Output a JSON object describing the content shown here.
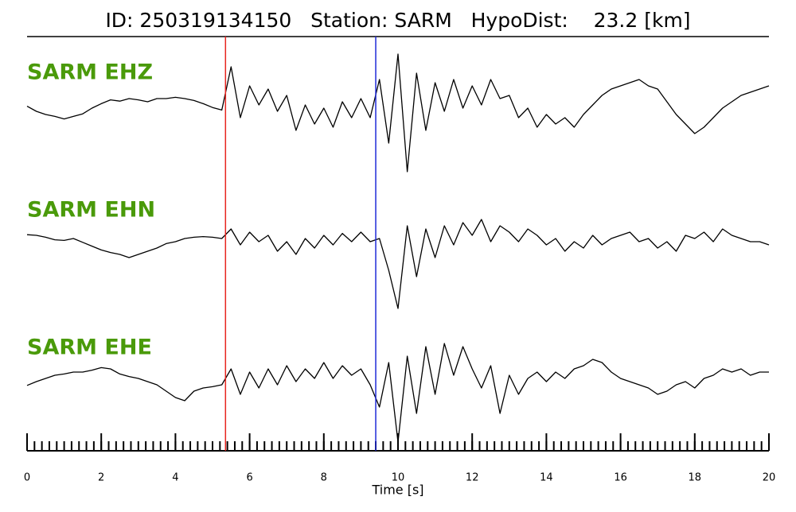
{
  "chart_data": {
    "type": "line",
    "title": "ID: 250319134150   Station: SARM   HypoDist:    23.2 [km]",
    "xlabel": "Time [s]",
    "xlim": [
      0,
      20
    ],
    "xticks": [
      0,
      2,
      4,
      6,
      8,
      10,
      12,
      14,
      16,
      18,
      20
    ],
    "xminor_step": 0.2,
    "label_color": "#4a9a0a",
    "markers": [
      {
        "x": 5.35,
        "color": "#e8251f"
      },
      {
        "x": 9.4,
        "color": "#1f2ad8"
      }
    ],
    "x": [
      0,
      0.25,
      0.5,
      0.75,
      1,
      1.25,
      1.5,
      1.75,
      2,
      2.25,
      2.5,
      2.75,
      3,
      3.25,
      3.5,
      3.75,
      4,
      4.25,
      4.5,
      4.75,
      5,
      5.25,
      5.5,
      5.75,
      6,
      6.25,
      6.5,
      6.75,
      7,
      7.25,
      7.5,
      7.75,
      8,
      8.25,
      8.5,
      8.75,
      9,
      9.25,
      9.5,
      9.75,
      10,
      10.25,
      10.5,
      10.75,
      11,
      11.25,
      11.5,
      11.75,
      12,
      12.25,
      12.5,
      12.75,
      13,
      13.25,
      13.5,
      13.75,
      14,
      14.25,
      14.5,
      14.75,
      15,
      15.25,
      15.5,
      15.75,
      16,
      16.25,
      16.5,
      16.75,
      17,
      17.25,
      17.5,
      17.75,
      18,
      18.25,
      18.5,
      18.75,
      19,
      19.25,
      19.5,
      19.75,
      20
    ],
    "series": [
      {
        "name": "SARM EHZ",
        "color": "#000000",
        "ylim": [
          -1,
          1
        ],
        "values": [
          0.08,
          0.0,
          -0.05,
          -0.08,
          -0.12,
          -0.08,
          -0.04,
          0.05,
          0.12,
          0.18,
          0.16,
          0.2,
          0.18,
          0.15,
          0.2,
          0.2,
          0.22,
          0.2,
          0.17,
          0.12,
          0.06,
          0.02,
          0.7,
          -0.1,
          0.4,
          0.1,
          0.35,
          0.0,
          0.25,
          -0.3,
          0.1,
          -0.2,
          0.05,
          -0.25,
          0.15,
          -0.1,
          0.2,
          -0.1,
          0.5,
          -0.5,
          0.9,
          -0.95,
          0.6,
          -0.3,
          0.45,
          0.0,
          0.5,
          0.05,
          0.4,
          0.1,
          0.5,
          0.2,
          0.25,
          -0.1,
          0.05,
          -0.25,
          -0.05,
          -0.2,
          -0.1,
          -0.25,
          -0.05,
          0.1,
          0.25,
          0.35,
          0.4,
          0.45,
          0.5,
          0.4,
          0.35,
          0.15,
          -0.05,
          -0.2,
          -0.35,
          -0.25,
          -0.1,
          0.05,
          0.15,
          0.25,
          0.3,
          0.35,
          0.4
        ]
      },
      {
        "name": "SARM EHN",
        "color": "#000000",
        "ylim": [
          -1,
          1
        ],
        "values": [
          0.06,
          0.05,
          0.02,
          -0.02,
          -0.03,
          0.0,
          -0.06,
          -0.12,
          -0.18,
          -0.22,
          -0.25,
          -0.3,
          -0.25,
          -0.2,
          -0.15,
          -0.08,
          -0.05,
          0.0,
          0.02,
          0.03,
          0.02,
          0.0,
          0.15,
          -0.1,
          0.1,
          -0.05,
          0.05,
          -0.2,
          -0.05,
          -0.25,
          0.0,
          -0.15,
          0.05,
          -0.1,
          0.08,
          -0.05,
          0.1,
          -0.05,
          0.0,
          -0.5,
          -1.1,
          0.2,
          -0.6,
          0.15,
          -0.3,
          0.2,
          -0.1,
          0.25,
          0.05,
          0.3,
          -0.05,
          0.2,
          0.1,
          -0.05,
          0.15,
          0.05,
          -0.1,
          0.0,
          -0.2,
          -0.05,
          -0.15,
          0.05,
          -0.1,
          0.0,
          0.05,
          0.1,
          -0.05,
          0.0,
          -0.15,
          -0.05,
          -0.2,
          0.05,
          0.0,
          0.1,
          -0.05,
          0.15,
          0.05,
          0.0,
          -0.05,
          -0.05,
          -0.1
        ]
      },
      {
        "name": "SARM EHE",
        "color": "#000000",
        "ylim": [
          -1,
          1
        ],
        "values": [
          -0.06,
          0.0,
          0.05,
          0.1,
          0.12,
          0.15,
          0.15,
          0.18,
          0.22,
          0.2,
          0.12,
          0.08,
          0.05,
          0.0,
          -0.05,
          -0.15,
          -0.25,
          -0.3,
          -0.15,
          -0.1,
          -0.08,
          -0.05,
          0.2,
          -0.2,
          0.15,
          -0.1,
          0.2,
          -0.05,
          0.25,
          0.0,
          0.2,
          0.05,
          0.3,
          0.05,
          0.25,
          0.1,
          0.2,
          -0.05,
          -0.4,
          0.3,
          -0.95,
          0.4,
          -0.5,
          0.55,
          -0.2,
          0.6,
          0.1,
          0.55,
          0.2,
          -0.1,
          0.25,
          -0.5,
          0.1,
          -0.2,
          0.05,
          0.15,
          0.0,
          0.15,
          0.05,
          0.2,
          0.25,
          0.35,
          0.3,
          0.15,
          0.05,
          0.0,
          -0.05,
          -0.1,
          -0.2,
          -0.15,
          -0.05,
          0.0,
          -0.1,
          0.05,
          0.1,
          0.2,
          0.15,
          0.2,
          0.1,
          0.15,
          0.15
        ]
      }
    ]
  }
}
